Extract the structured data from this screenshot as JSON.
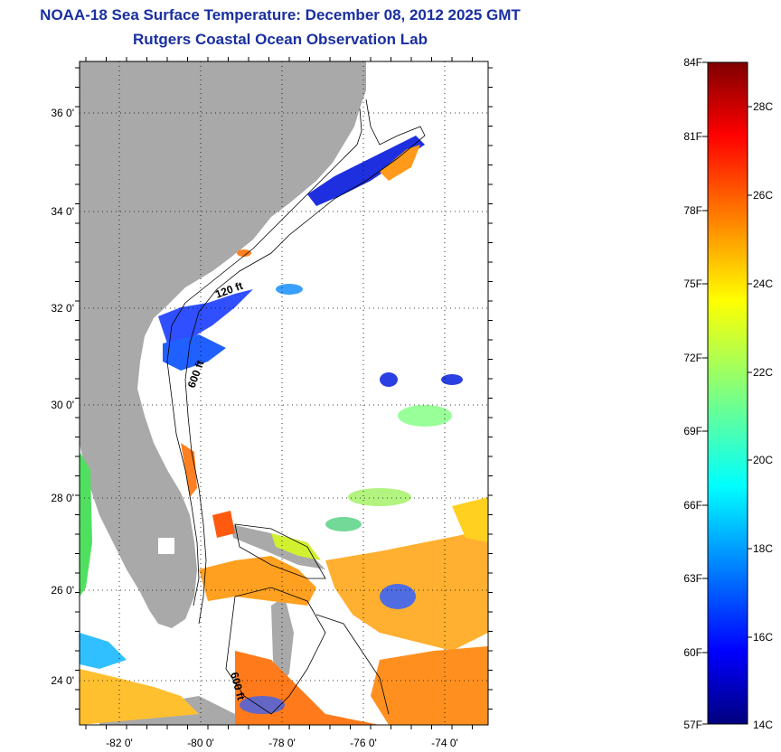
{
  "header": {
    "title": "NOAA-18 Sea Surface Temperature:  December 08, 2012 2025 GMT",
    "subtitle": "Rutgers Coastal Ocean Observation Lab"
  },
  "map": {
    "lat_labels": [
      "36 0'",
      "34 0'",
      "32 0'",
      "30 0'",
      "28 0'",
      "26 0'",
      "24 0'"
    ],
    "lon_labels": [
      "-82 0'",
      "-80 0'",
      "-78 0'",
      "-76 0'",
      "-74 0'"
    ],
    "depth_labels": [
      "120 ft",
      "600 ft",
      "600 ft"
    ],
    "colors": {
      "land": "#a9a9a9",
      "ocean_missing": "#ffffff"
    }
  },
  "colorbar": {
    "f_labels": [
      "84F",
      "81F",
      "78F",
      "75F",
      "72F",
      "69F",
      "66F",
      "63F",
      "60F",
      "57F"
    ],
    "c_labels": [
      "28C",
      "26C",
      "24C",
      "22C",
      "20C",
      "18C",
      "16C",
      "14C"
    ],
    "range_f": [
      57,
      84
    ],
    "range_c": [
      14,
      29
    ],
    "colormap": "jet"
  }
}
